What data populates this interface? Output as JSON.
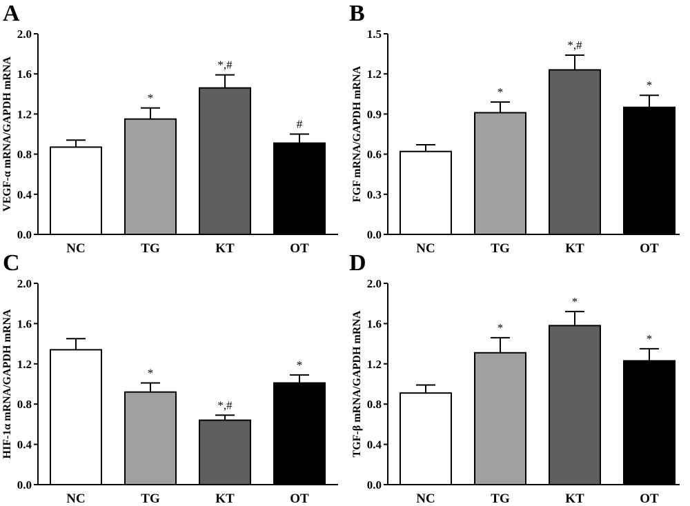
{
  "chart_data": [
    {
      "panel": "A",
      "type": "bar",
      "categories": [
        "NC",
        "TG",
        "KT",
        "OT"
      ],
      "values": [
        0.87,
        1.15,
        1.46,
        0.91
      ],
      "errors": [
        0.07,
        0.11,
        0.13,
        0.09
      ],
      "annotations": [
        "",
        "*",
        "*,#",
        "#"
      ],
      "colors": [
        "#ffffff",
        "#a0a0a0",
        "#5f5f5f",
        "#000000"
      ],
      "ylabel": "VEGF-α mRNA/GAPDH mRNA",
      "ylim": [
        0,
        2.0
      ],
      "yticks": [
        "0.0",
        "0.4",
        "0.8",
        "1.2",
        "1.6",
        "2.0"
      ]
    },
    {
      "panel": "B",
      "type": "bar",
      "categories": [
        "NC",
        "TG",
        "KT",
        "OT"
      ],
      "values": [
        0.62,
        0.91,
        1.23,
        0.95
      ],
      "errors": [
        0.05,
        0.08,
        0.11,
        0.09
      ],
      "annotations": [
        "",
        "*",
        "*,#",
        "*"
      ],
      "colors": [
        "#ffffff",
        "#a0a0a0",
        "#5f5f5f",
        "#000000"
      ],
      "ylabel": "FGF mRNA/GAPDH mRNA",
      "ylim": [
        0,
        1.5
      ],
      "yticks": [
        "0.0",
        "0.3",
        "0.6",
        "0.9",
        "1.2",
        "1.5"
      ]
    },
    {
      "panel": "C",
      "type": "bar",
      "categories": [
        "NC",
        "TG",
        "KT",
        "OT"
      ],
      "values": [
        1.34,
        0.92,
        0.64,
        1.01
      ],
      "errors": [
        0.11,
        0.09,
        0.05,
        0.08
      ],
      "annotations": [
        "",
        "*",
        "*,#",
        "*"
      ],
      "colors": [
        "#ffffff",
        "#a0a0a0",
        "#5f5f5f",
        "#000000"
      ],
      "ylabel": "HIF-1α mRNA/GAPDH mRNA",
      "ylim": [
        0,
        2.0
      ],
      "yticks": [
        "0.0",
        "0.4",
        "0.8",
        "1.2",
        "1.6",
        "2.0"
      ]
    },
    {
      "panel": "D",
      "type": "bar",
      "categories": [
        "NC",
        "TG",
        "KT",
        "OT"
      ],
      "values": [
        0.91,
        1.31,
        1.58,
        1.23
      ],
      "errors": [
        0.08,
        0.15,
        0.14,
        0.12
      ],
      "annotations": [
        "",
        "*",
        "*",
        "*"
      ],
      "colors": [
        "#ffffff",
        "#a0a0a0",
        "#5f5f5f",
        "#000000"
      ],
      "ylabel": "TGF-β mRNA/GAPDH mRNA",
      "ylim": [
        0,
        2.0
      ],
      "yticks": [
        "0.0",
        "0.4",
        "0.8",
        "1.2",
        "1.6",
        "2.0"
      ]
    }
  ]
}
